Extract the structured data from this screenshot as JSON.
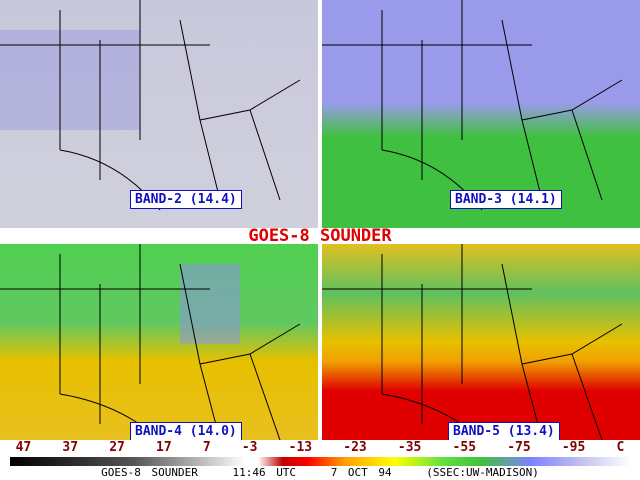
{
  "title": "GOES-8 SOUNDER",
  "panels": [
    {
      "label": "BAND-2 (14.4)"
    },
    {
      "label": "BAND-3 (14.1)"
    },
    {
      "label": "BAND-4 (14.0)"
    },
    {
      "label": "BAND-5 (13.4)"
    }
  ],
  "scale": {
    "labels": [
      "47",
      "37",
      "27",
      "17",
      "7",
      "-3",
      "-13",
      "-23",
      "-35",
      "-55",
      "-75",
      "-95"
    ],
    "unit": "C"
  },
  "footer": {
    "source": "GOES-8 SOUNDER",
    "time": "11:46 UTC",
    "date": "7 OCT 94",
    "credit": "(SSEC:UW-MADISON)"
  }
}
